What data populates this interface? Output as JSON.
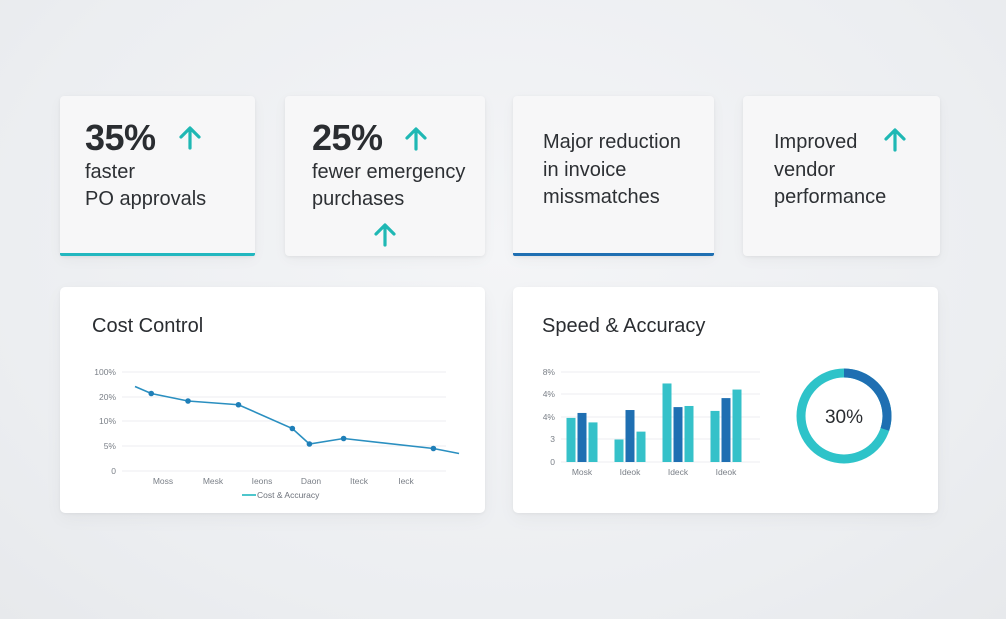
{
  "stats": [
    {
      "big": "35%",
      "line1": "faster",
      "line2": "PO approvals"
    },
    {
      "big": "25%",
      "line1": "fewer emergency",
      "line2": "purchases"
    },
    {
      "line1": "Major reduction",
      "line2": "in invoice",
      "line3": "missmatches"
    },
    {
      "line1": "Improved",
      "line2": "vendor",
      "line3": "performance"
    }
  ],
  "colors": {
    "teal": "#22b7bf",
    "blue": "#1f6fb2",
    "arrow": "#1fb8b4"
  },
  "chart_data": [
    {
      "type": "line",
      "title": "Cost Control",
      "y_ticks": [
        "100%",
        "20%",
        "10%",
        "5%",
        "0"
      ],
      "x_ticks": [
        "Moss",
        "Mesk",
        "Ieons",
        "Daon",
        "Iteck",
        "Ieck"
      ],
      "legend": "Cost & Accuracy",
      "series": [
        {
          "name": "Cost & Accuracy",
          "points": [
            {
              "x": 0.0,
              "y": 3.38
            },
            {
              "x": 0.19,
              "y": 3.1
            },
            {
              "x": 0.62,
              "y": 2.8
            },
            {
              "x": 1.21,
              "y": 2.65
            },
            {
              "x": 1.84,
              "y": 1.7
            },
            {
              "x": 2.04,
              "y": 1.08
            },
            {
              "x": 2.44,
              "y": 1.3
            },
            {
              "x": 3.49,
              "y": 0.9
            },
            {
              "x": 3.79,
              "y": 0.7
            }
          ],
          "markers": [
            1,
            2,
            3,
            4,
            5,
            6,
            7
          ]
        }
      ]
    },
    {
      "type": "bar",
      "title": "Speed & Accuracy",
      "y_ticks": [
        "8%",
        "4%",
        "4%",
        "3",
        "0"
      ],
      "categories": [
        "Mosk",
        "Ideok",
        "Ideck",
        "Ideok"
      ],
      "series": [
        {
          "values": [
            1.96,
            1.0,
            3.49,
            2.27
          ]
        },
        {
          "values": [
            2.18,
            2.31,
            2.44,
            2.84
          ]
        },
        {
          "values": [
            1.76,
            1.35,
            2.49,
            3.22
          ]
        }
      ]
    },
    {
      "type": "donut",
      "value": 30,
      "label": "30%"
    }
  ]
}
